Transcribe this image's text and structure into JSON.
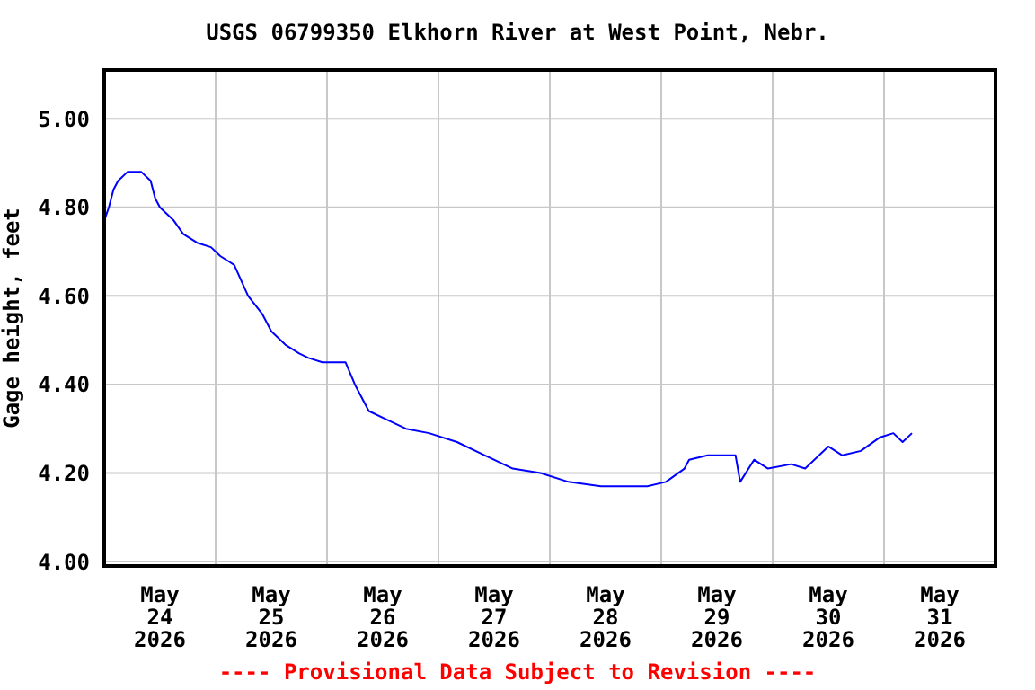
{
  "chart_data": {
    "type": "line",
    "title": "USGS 06799350 Elkhorn River at West Point, Nebr.",
    "ylabel": "Gage height, feet",
    "annotations": [
      "---- Provisional Data Subject to Revision ----"
    ],
    "xlim": [
      "2026-05-24T00:00",
      "2026-06-01T00:00"
    ],
    "xticks": [
      {
        "value": "2026-05-24T12:00",
        "label": "May\n24\n2026"
      },
      {
        "value": "2026-05-25T00:00",
        "label": null
      },
      {
        "value": "2026-05-25T12:00",
        "label": "May\n25\n2026"
      },
      {
        "value": "2026-05-26T00:00",
        "label": null
      },
      {
        "value": "2026-05-26T12:00",
        "label": "May\n26\n2026"
      },
      {
        "value": "2026-05-27T00:00",
        "label": null
      },
      {
        "value": "2026-05-27T12:00",
        "label": "May\n27\n2026"
      },
      {
        "value": "2026-05-28T00:00",
        "label": null
      },
      {
        "value": "2026-05-28T12:00",
        "label": "May\n28\n2026"
      },
      {
        "value": "2026-05-29T00:00",
        "label": null
      },
      {
        "value": "2026-05-29T12:00",
        "label": "May\n29\n2026"
      },
      {
        "value": "2026-05-30T00:00",
        "label": null
      },
      {
        "value": "2026-05-30T12:00",
        "label": "May\n30\n2026"
      },
      {
        "value": "2026-05-31T00:00",
        "label": null
      },
      {
        "value": "2026-05-31T12:00",
        "label": "May\n31\n2026"
      }
    ],
    "ylim": [
      3.99,
      5.11
    ],
    "yticks": [
      {
        "value": 4,
        "label": "4.00"
      },
      {
        "value": 4.2,
        "label": "4.20"
      },
      {
        "value": 4.4,
        "label": "4.40"
      },
      {
        "value": 4.6,
        "label": "4.60"
      },
      {
        "value": 4.8,
        "label": "4.80"
      },
      {
        "value": 5,
        "label": "5.00"
      }
    ],
    "grid": true,
    "marker": "none",
    "x": [
      "2026-05-24T00:00",
      "2026-05-24T01:00",
      "2026-05-24T02:00",
      "2026-05-24T03:00",
      "2026-05-24T05:00",
      "2026-05-24T08:00",
      "2026-05-24T10:00",
      "2026-05-24T11:00",
      "2026-05-24T12:00",
      "2026-05-24T15:00",
      "2026-05-24T17:00",
      "2026-05-24T20:00",
      "2026-05-24T23:00",
      "2026-05-25T01:00",
      "2026-05-25T04:00",
      "2026-05-25T07:00",
      "2026-05-25T10:00",
      "2026-05-25T12:00",
      "2026-05-25T15:00",
      "2026-05-25T18:00",
      "2026-05-25T20:00",
      "2026-05-25T23:00",
      "2026-05-26T04:00",
      "2026-05-26T06:00",
      "2026-05-26T09:00",
      "2026-05-26T13:00",
      "2026-05-26T17:00",
      "2026-05-26T22:00",
      "2026-05-27T04:00",
      "2026-05-27T10:00",
      "2026-05-27T16:00",
      "2026-05-27T22:00",
      "2026-05-28T04:00",
      "2026-05-28T11:00",
      "2026-05-28T17:00",
      "2026-05-28T21:00",
      "2026-05-29T01:00",
      "2026-05-29T05:00",
      "2026-05-29T06:00",
      "2026-05-29T10:00",
      "2026-05-29T16:00",
      "2026-05-29T17:00",
      "2026-05-29T20:00",
      "2026-05-29T23:00",
      "2026-05-30T04:00",
      "2026-05-30T07:00",
      "2026-05-30T10:00",
      "2026-05-30T12:00",
      "2026-05-30T15:00",
      "2026-05-30T19:00",
      "2026-05-30T23:00",
      "2026-05-31T02:00",
      "2026-05-31T04:00",
      "2026-05-31T06:00"
    ],
    "series": [
      {
        "color": "#0000ff",
        "values": [
          4.77,
          4.8,
          4.84,
          4.86,
          4.88,
          4.88,
          4.86,
          4.82,
          4.8,
          4.77,
          4.74,
          4.72,
          4.71,
          4.69,
          4.67,
          4.6,
          4.56,
          4.52,
          4.49,
          4.47,
          4.46,
          4.45,
          4.45,
          4.4,
          4.34,
          4.32,
          4.3,
          4.29,
          4.27,
          4.24,
          4.21,
          4.2,
          4.18,
          4.17,
          4.17,
          4.17,
          4.18,
          4.21,
          4.23,
          4.24,
          4.24,
          4.18,
          4.23,
          4.21,
          4.22,
          4.21,
          4.24,
          4.26,
          4.24,
          4.25,
          4.28,
          4.29,
          4.27,
          4.29
        ]
      }
    ]
  }
}
